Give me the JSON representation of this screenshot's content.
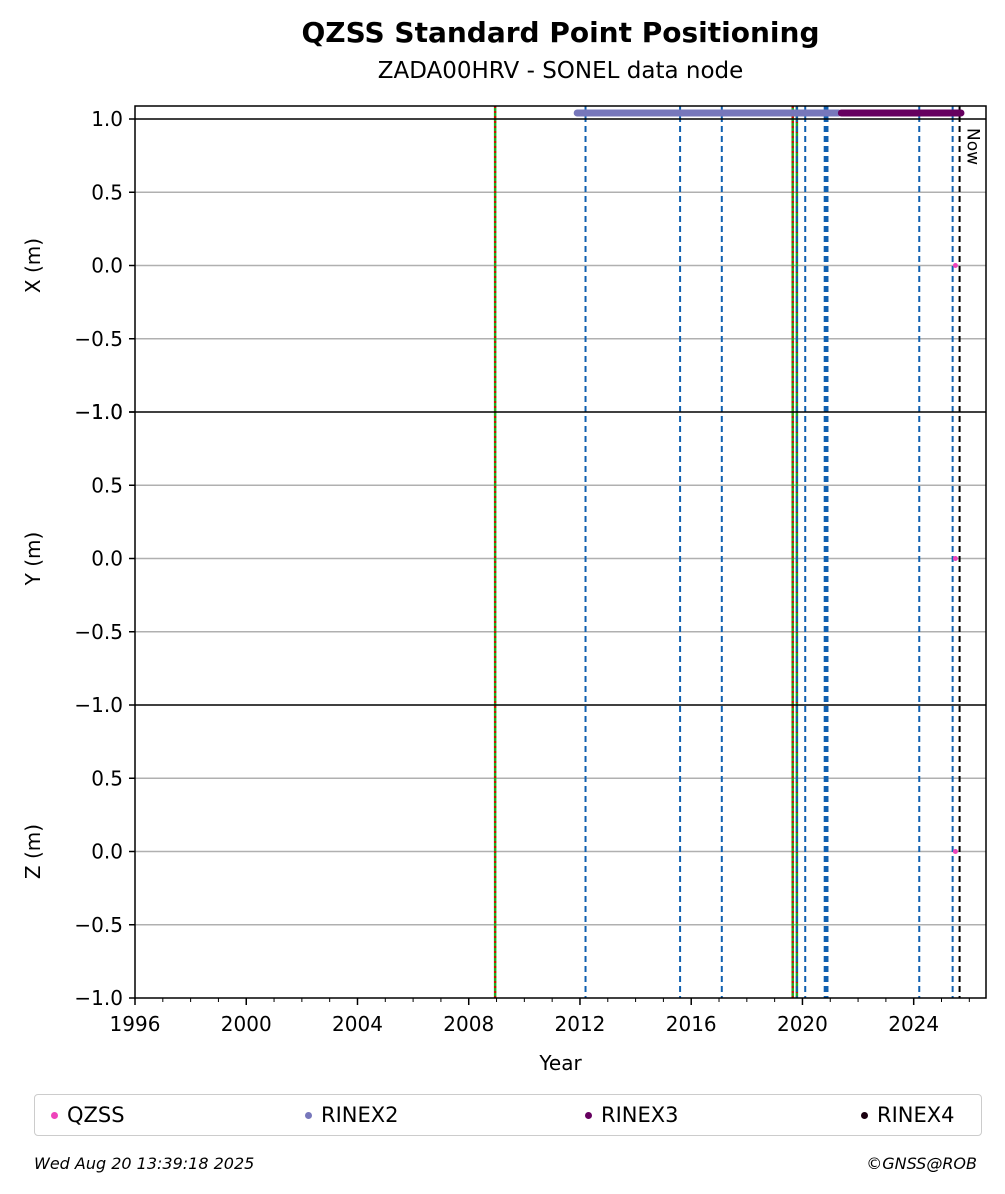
{
  "chart_data": {
    "type": "scatter",
    "title": "QZSS Standard Point Positioning",
    "subtitle": "ZADA00HRV - SONEL data node",
    "xlabel": "Year",
    "xlim": [
      1996,
      2026.6
    ],
    "x_ticks": [
      "1996",
      "2000",
      "2004",
      "2008",
      "2012",
      "2016",
      "2020",
      "2024"
    ],
    "x_tick_values": [
      1996,
      2000,
      2004,
      2008,
      2012,
      2016,
      2020,
      2024
    ],
    "panels": [
      {
        "ylabel": "X (m)",
        "ylim": [
          -1.0,
          1.0
        ],
        "y_ticks": [
          "1.0",
          "0.5",
          "0.0",
          "−0.5",
          "−1.0"
        ],
        "qzss_points": [
          {
            "x": 2025.5,
            "y": 0.0
          }
        ]
      },
      {
        "ylabel": "Y (m)",
        "ylim": [
          -1.0,
          1.0
        ],
        "y_ticks": [
          "−1.0",
          "0.5",
          "0.0",
          "−0.5"
        ],
        "qzss_points": [
          {
            "x": 2025.5,
            "y": 0.0
          }
        ]
      },
      {
        "ylabel": "Z (m)",
        "ylim": [
          -1.0,
          1.0
        ],
        "y_ticks": [
          "−1.0",
          "0.5",
          "0.0",
          "−0.5",
          "−1.0"
        ],
        "qzss_points": [
          {
            "x": 2025.5,
            "y": 0.0
          }
        ]
      }
    ],
    "grid": "horizontal",
    "data_availability": [
      {
        "name": "RINEX2",
        "color": "#7777bb",
        "start": 2011.9,
        "end": 2021.3
      },
      {
        "name": "RINEX3",
        "color": "#66005f",
        "start": 2021.4,
        "end": 2025.7
      }
    ],
    "equipment_changes_blue_dashed": [
      2012.2,
      2015.6,
      2017.1,
      2019.8,
      2020.1,
      2020.8,
      2020.85,
      2020.9,
      2024.2,
      2025.4
    ],
    "events_red_green_dotted": [
      2008.95,
      2019.65,
      2019.8
    ],
    "now_line": {
      "x": 2025.65,
      "label": "Now"
    },
    "legend": [
      {
        "label": "QZSS",
        "color": "#ee44bb"
      },
      {
        "label": "RINEX2",
        "color": "#7777bb"
      },
      {
        "label": "RINEX3",
        "color": "#66005f"
      },
      {
        "label": "RINEX4",
        "color": "#1a0010"
      }
    ]
  },
  "footer": {
    "timestamp": "Wed Aug 20 13:39:18 2025",
    "credit": "©GNSS@ROB"
  }
}
